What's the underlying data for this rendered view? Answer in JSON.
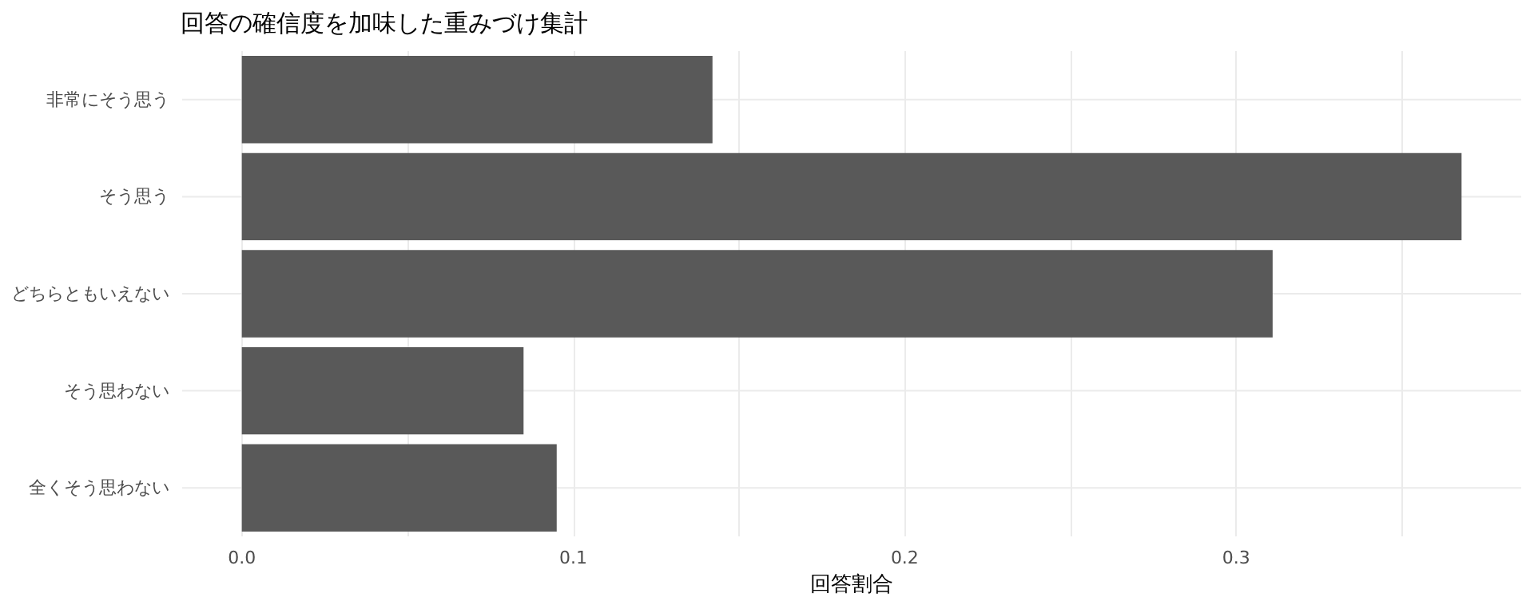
{
  "chart_data": {
    "type": "bar",
    "orientation": "horizontal",
    "title": "回答の確信度を加味した重みづけ集計",
    "xlabel": "回答割合",
    "categories": [
      "非常にそう思う",
      "そう思う",
      "どちらともいえない",
      "そう思わない",
      "全くそう思わない"
    ],
    "values": [
      0.142,
      0.368,
      0.311,
      0.085,
      0.095
    ],
    "color": "#595959",
    "xlim": [
      -0.018,
      0.386
    ],
    "xticks": [
      {
        "value": 0,
        "label": "0.0"
      },
      {
        "value": 0.05,
        "label": null
      },
      0.1,
      {
        "value": 0.15,
        "label": null
      },
      0.2,
      {
        "value": 0.25,
        "label": null
      },
      0.3,
      {
        "value": 0.35,
        "label": null
      }
    ],
    "grid": true
  }
}
